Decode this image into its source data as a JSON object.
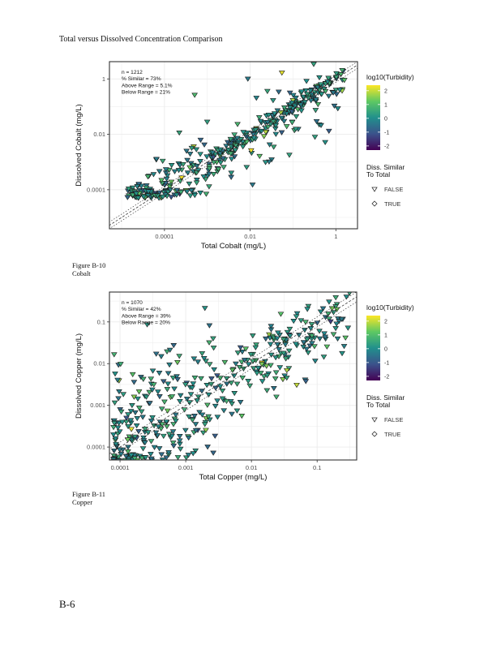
{
  "document": {
    "title": "Total versus Dissolved Concentration Comparison",
    "page_number": "B-6",
    "figures": [
      {
        "label": "Figure B-10",
        "caption": "Cobalt"
      },
      {
        "label": "Figure B-11",
        "caption": "Copper"
      }
    ]
  },
  "colors": {
    "viridis": [
      "#440154",
      "#3b528b",
      "#21908c",
      "#5dc863",
      "#fde725"
    ],
    "grid": "#ebebeb",
    "frame": "#333333"
  },
  "chart_data": [
    {
      "type": "scatter",
      "title": "",
      "xlabel": "Total Cobalt (mg/L)",
      "ylabel": "Dissolved Cobalt (mg/L)",
      "x_scale": "log10",
      "y_scale": "log10",
      "xlim": [
        5.2e-06,
        3.2
      ],
      "ylim": [
        3.9e-06,
        4.2
      ],
      "x_ticks": [
        0.0001,
        0.01,
        1
      ],
      "x_tick_labels": [
        "0.0001",
        "0.01",
        "1"
      ],
      "y_ticks": [
        0.0001,
        0.01,
        1
      ],
      "y_tick_labels": [
        "0.0001",
        "0.01",
        "1"
      ],
      "grid": true,
      "reference_lines": [
        "1:1 line",
        "similarity range bounds"
      ],
      "annotation": [
        "n = 1212",
        "% Similar = 73%",
        "Above Range = 5.1%",
        "Below Range = 21%"
      ],
      "color_legend": {
        "title": "log10(Turbidity)",
        "ticks": [
          2,
          1,
          0,
          -1,
          -2
        ],
        "tick_labels": [
          "2",
          "1",
          "0",
          "-1",
          "-2"
        ],
        "range": [
          -2.3,
          2.4
        ]
      },
      "shape_legend": {
        "title_line1": "Diss. Similar",
        "title_line2": "To Total",
        "entries": [
          {
            "label": "FALSE",
            "shape": "triangle-down"
          },
          {
            "label": "TRUE",
            "shape": "diamond"
          }
        ]
      },
      "legend_position": "right",
      "n_points_shown": 420,
      "seed": 12
    },
    {
      "type": "scatter",
      "title": "",
      "xlabel": "Total Copper (mg/L)",
      "ylabel": "Dissolved Copper (mg/L)",
      "x_scale": "log10",
      "y_scale": "log10",
      "xlim": [
        6.9e-05,
        0.4
      ],
      "ylim": [
        4.9e-05,
        0.52
      ],
      "x_ticks": [
        0.0001,
        0.001,
        0.01,
        0.1
      ],
      "x_tick_labels": [
        "0.0001",
        "0.001",
        "0.01",
        "0.1"
      ],
      "y_ticks": [
        0.0001,
        0.001,
        0.01,
        0.1
      ],
      "y_tick_labels": [
        "0.0001",
        "0.001",
        "0.01",
        "0.1"
      ],
      "grid": true,
      "reference_lines": [
        "1:1 line",
        "similarity range bounds"
      ],
      "annotation": [
        "n = 1070",
        "% Similar = 42%",
        "Above Range = 39%",
        "Below Range = 20%"
      ],
      "color_legend": {
        "title": "log10(Turbidity)",
        "ticks": [
          2,
          1,
          0,
          -1,
          -2
        ],
        "tick_labels": [
          "2",
          "1",
          "0",
          "-1",
          "-2"
        ],
        "range": [
          -2.3,
          2.4
        ]
      },
      "shape_legend": {
        "title_line1": "Diss. Similar",
        "title_line2": "To Total",
        "entries": [
          {
            "label": "FALSE",
            "shape": "triangle-down"
          },
          {
            "label": "TRUE",
            "shape": "diamond"
          }
        ]
      },
      "legend_position": "right",
      "n_points_shown": 460,
      "seed": 34
    }
  ]
}
